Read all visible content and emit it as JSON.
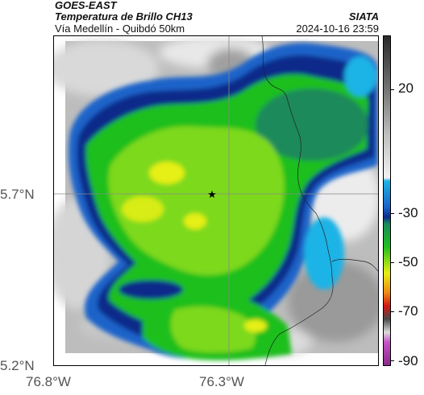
{
  "header": {
    "satellite": "GOES-EAST",
    "product": "Temperatura de Brillo CH13",
    "region": "Vía Medellín - Quibdó 50km",
    "agency": "SIATA",
    "datetime": "2024-10-16 23:59"
  },
  "axes": {
    "y_ticks": [
      "5.7°N",
      "5.2°N"
    ],
    "x_ticks": [
      "76.8°W",
      "76.3°W"
    ]
  },
  "colorbar": {
    "ticks": [
      "20",
      "-30",
      "-50",
      "-70",
      "-90"
    ],
    "colors": {
      "warm_white": "#f2f2f2",
      "gray": "#8c8c8c",
      "dark_gray": "#2b2b2b",
      "cyan": "#1fb3e6",
      "blue": "#1a63c9",
      "navy": "#0f2a8a",
      "green": "#1fbf1f",
      "light_green": "#7dd91a",
      "yellow": "#e6ef12",
      "orange": "#ef8a12",
      "red": "#d41616",
      "purple": "#c454c4"
    }
  },
  "map": {
    "marker": "star",
    "gridlines": true
  }
}
